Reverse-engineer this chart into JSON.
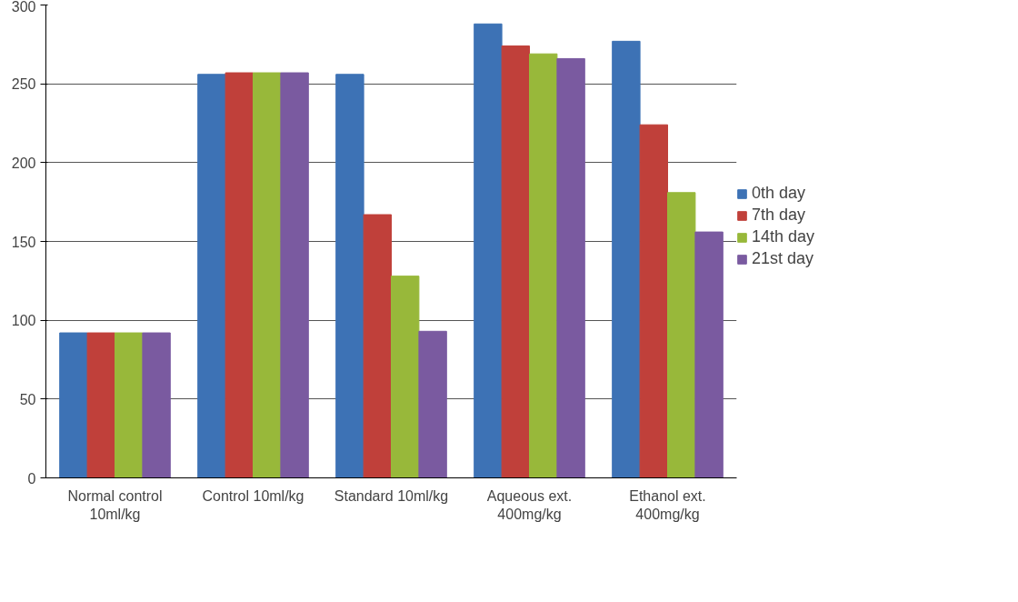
{
  "chart_data": {
    "type": "bar",
    "categories": [
      "Normal control\n10ml/kg",
      "Control 10ml/kg",
      "Standard 10ml/kg",
      "Aqueous ext.\n400mg/kg",
      "Ethanol ext.\n400mg/kg"
    ],
    "series": [
      {
        "name": "0th day",
        "color": "#3d72b5",
        "values": [
          92,
          256,
          256,
          288,
          277
        ]
      },
      {
        "name": "7th day",
        "color": "#c0403a",
        "values": [
          92,
          257,
          167,
          274,
          224
        ]
      },
      {
        "name": "14th day",
        "color": "#98b83a",
        "values": [
          92,
          257,
          128,
          269,
          181
        ]
      },
      {
        "name": "21st day",
        "color": "#7a5aa0",
        "values": [
          92,
          257,
          93,
          266,
          156
        ]
      }
    ],
    "ylim": [
      0,
      300
    ],
    "yticks": [
      0,
      50,
      100,
      150,
      200,
      250,
      300
    ],
    "grid": "y",
    "legend": "right"
  }
}
